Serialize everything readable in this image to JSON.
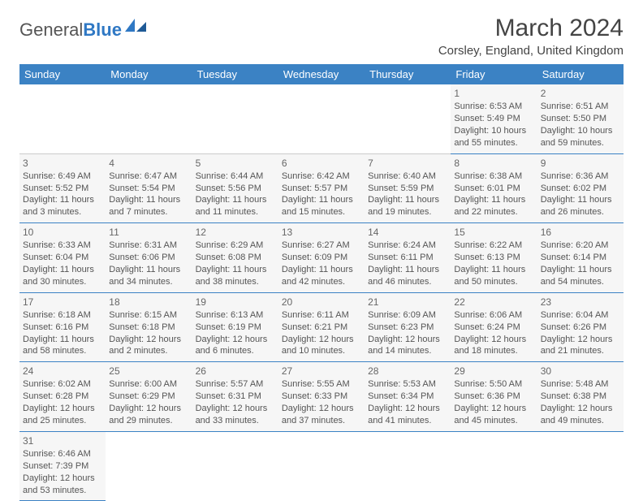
{
  "logo": {
    "text1": "General",
    "text2": "Blue"
  },
  "title": "March 2024",
  "location": "Corsley, England, United Kingdom",
  "colors": {
    "header_bg": "#3b82c4",
    "header_fg": "#ffffff",
    "cell_bg": "#f6f6f6",
    "border": "#3b82c4",
    "text": "#555555"
  },
  "weekdays": [
    "Sunday",
    "Monday",
    "Tuesday",
    "Wednesday",
    "Thursday",
    "Friday",
    "Saturday"
  ],
  "weeks": [
    [
      null,
      null,
      null,
      null,
      null,
      {
        "n": "1",
        "sr": "Sunrise: 6:53 AM",
        "ss": "Sunset: 5:49 PM",
        "dl": "Daylight: 10 hours and 55 minutes."
      },
      {
        "n": "2",
        "sr": "Sunrise: 6:51 AM",
        "ss": "Sunset: 5:50 PM",
        "dl": "Daylight: 10 hours and 59 minutes."
      }
    ],
    [
      {
        "n": "3",
        "sr": "Sunrise: 6:49 AM",
        "ss": "Sunset: 5:52 PM",
        "dl": "Daylight: 11 hours and 3 minutes."
      },
      {
        "n": "4",
        "sr": "Sunrise: 6:47 AM",
        "ss": "Sunset: 5:54 PM",
        "dl": "Daylight: 11 hours and 7 minutes."
      },
      {
        "n": "5",
        "sr": "Sunrise: 6:44 AM",
        "ss": "Sunset: 5:56 PM",
        "dl": "Daylight: 11 hours and 11 minutes."
      },
      {
        "n": "6",
        "sr": "Sunrise: 6:42 AM",
        "ss": "Sunset: 5:57 PM",
        "dl": "Daylight: 11 hours and 15 minutes."
      },
      {
        "n": "7",
        "sr": "Sunrise: 6:40 AM",
        "ss": "Sunset: 5:59 PM",
        "dl": "Daylight: 11 hours and 19 minutes."
      },
      {
        "n": "8",
        "sr": "Sunrise: 6:38 AM",
        "ss": "Sunset: 6:01 PM",
        "dl": "Daylight: 11 hours and 22 minutes."
      },
      {
        "n": "9",
        "sr": "Sunrise: 6:36 AM",
        "ss": "Sunset: 6:02 PM",
        "dl": "Daylight: 11 hours and 26 minutes."
      }
    ],
    [
      {
        "n": "10",
        "sr": "Sunrise: 6:33 AM",
        "ss": "Sunset: 6:04 PM",
        "dl": "Daylight: 11 hours and 30 minutes."
      },
      {
        "n": "11",
        "sr": "Sunrise: 6:31 AM",
        "ss": "Sunset: 6:06 PM",
        "dl": "Daylight: 11 hours and 34 minutes."
      },
      {
        "n": "12",
        "sr": "Sunrise: 6:29 AM",
        "ss": "Sunset: 6:08 PM",
        "dl": "Daylight: 11 hours and 38 minutes."
      },
      {
        "n": "13",
        "sr": "Sunrise: 6:27 AM",
        "ss": "Sunset: 6:09 PM",
        "dl": "Daylight: 11 hours and 42 minutes."
      },
      {
        "n": "14",
        "sr": "Sunrise: 6:24 AM",
        "ss": "Sunset: 6:11 PM",
        "dl": "Daylight: 11 hours and 46 minutes."
      },
      {
        "n": "15",
        "sr": "Sunrise: 6:22 AM",
        "ss": "Sunset: 6:13 PM",
        "dl": "Daylight: 11 hours and 50 minutes."
      },
      {
        "n": "16",
        "sr": "Sunrise: 6:20 AM",
        "ss": "Sunset: 6:14 PM",
        "dl": "Daylight: 11 hours and 54 minutes."
      }
    ],
    [
      {
        "n": "17",
        "sr": "Sunrise: 6:18 AM",
        "ss": "Sunset: 6:16 PM",
        "dl": "Daylight: 11 hours and 58 minutes."
      },
      {
        "n": "18",
        "sr": "Sunrise: 6:15 AM",
        "ss": "Sunset: 6:18 PM",
        "dl": "Daylight: 12 hours and 2 minutes."
      },
      {
        "n": "19",
        "sr": "Sunrise: 6:13 AM",
        "ss": "Sunset: 6:19 PM",
        "dl": "Daylight: 12 hours and 6 minutes."
      },
      {
        "n": "20",
        "sr": "Sunrise: 6:11 AM",
        "ss": "Sunset: 6:21 PM",
        "dl": "Daylight: 12 hours and 10 minutes."
      },
      {
        "n": "21",
        "sr": "Sunrise: 6:09 AM",
        "ss": "Sunset: 6:23 PM",
        "dl": "Daylight: 12 hours and 14 minutes."
      },
      {
        "n": "22",
        "sr": "Sunrise: 6:06 AM",
        "ss": "Sunset: 6:24 PM",
        "dl": "Daylight: 12 hours and 18 minutes."
      },
      {
        "n": "23",
        "sr": "Sunrise: 6:04 AM",
        "ss": "Sunset: 6:26 PM",
        "dl": "Daylight: 12 hours and 21 minutes."
      }
    ],
    [
      {
        "n": "24",
        "sr": "Sunrise: 6:02 AM",
        "ss": "Sunset: 6:28 PM",
        "dl": "Daylight: 12 hours and 25 minutes."
      },
      {
        "n": "25",
        "sr": "Sunrise: 6:00 AM",
        "ss": "Sunset: 6:29 PM",
        "dl": "Daylight: 12 hours and 29 minutes."
      },
      {
        "n": "26",
        "sr": "Sunrise: 5:57 AM",
        "ss": "Sunset: 6:31 PM",
        "dl": "Daylight: 12 hours and 33 minutes."
      },
      {
        "n": "27",
        "sr": "Sunrise: 5:55 AM",
        "ss": "Sunset: 6:33 PM",
        "dl": "Daylight: 12 hours and 37 minutes."
      },
      {
        "n": "28",
        "sr": "Sunrise: 5:53 AM",
        "ss": "Sunset: 6:34 PM",
        "dl": "Daylight: 12 hours and 41 minutes."
      },
      {
        "n": "29",
        "sr": "Sunrise: 5:50 AM",
        "ss": "Sunset: 6:36 PM",
        "dl": "Daylight: 12 hours and 45 minutes."
      },
      {
        "n": "30",
        "sr": "Sunrise: 5:48 AM",
        "ss": "Sunset: 6:38 PM",
        "dl": "Daylight: 12 hours and 49 minutes."
      }
    ],
    [
      {
        "n": "31",
        "sr": "Sunrise: 6:46 AM",
        "ss": "Sunset: 7:39 PM",
        "dl": "Daylight: 12 hours and 53 minutes."
      },
      null,
      null,
      null,
      null,
      null,
      null
    ]
  ]
}
